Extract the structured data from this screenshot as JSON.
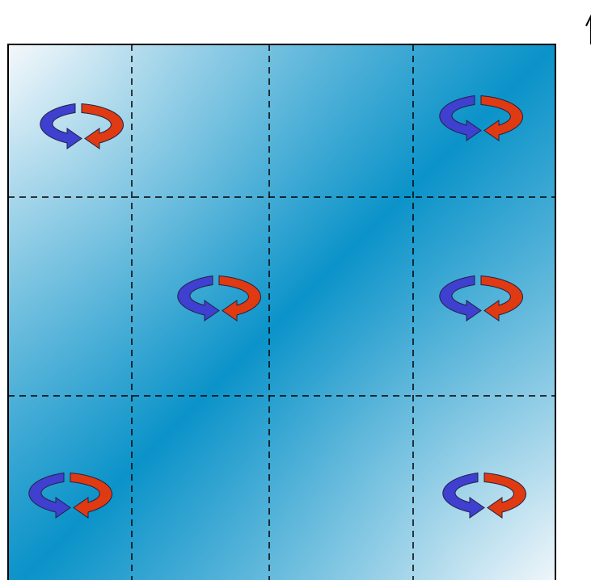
{
  "diagram": {
    "grid": {
      "rows": 3,
      "cols": 4,
      "dashed": true
    },
    "colors": {
      "gradient_light": "#f4f8fb",
      "gradient_dark": "#0b93c9",
      "border": "#000000",
      "grid_line": "#000000",
      "rotation_left": "#3f3fd0",
      "rotation_right": "#e03a12",
      "arrow_outline": "#222244"
    },
    "rotation_markers": [
      {
        "id": "r1",
        "cell": [
          0,
          0
        ],
        "icon": "circular-rotation-icon"
      },
      {
        "id": "r2",
        "cell": [
          0,
          3
        ],
        "icon": "circular-rotation-icon"
      },
      {
        "id": "r3",
        "cell": [
          1,
          1
        ],
        "icon": "circular-rotation-icon"
      },
      {
        "id": "r4",
        "cell": [
          1,
          3
        ],
        "icon": "circular-rotation-icon"
      },
      {
        "id": "r5",
        "cell": [
          2,
          0
        ],
        "icon": "circular-rotation-icon"
      },
      {
        "id": "r6",
        "cell": [
          2,
          3
        ],
        "icon": "circular-rotation-icon"
      }
    ],
    "axis_indicator": {
      "icon": "up-arrow-icon"
    }
  }
}
